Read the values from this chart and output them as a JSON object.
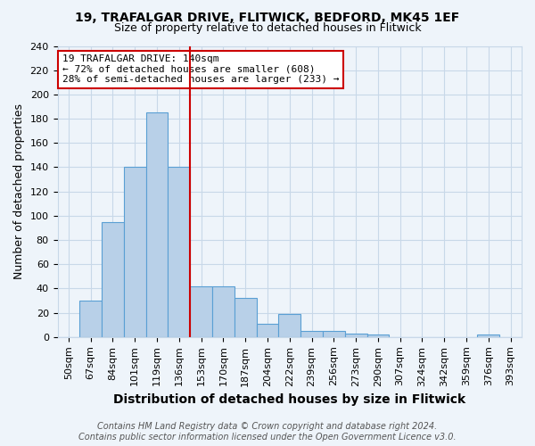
{
  "title_line1": "19, TRAFALGAR DRIVE, FLITWICK, BEDFORD, MK45 1EF",
  "title_line2": "Size of property relative to detached houses in Flitwick",
  "xlabel": "Distribution of detached houses by size in Flitwick",
  "ylabel": "Number of detached properties",
  "categories": [
    "50sqm",
    "67sqm",
    "84sqm",
    "101sqm",
    "119sqm",
    "136sqm",
    "153sqm",
    "170sqm",
    "187sqm",
    "204sqm",
    "222sqm",
    "239sqm",
    "256sqm",
    "273sqm",
    "290sqm",
    "307sqm",
    "324sqm",
    "342sqm",
    "359sqm",
    "376sqm",
    "393sqm"
  ],
  "values": [
    0,
    30,
    95,
    140,
    185,
    140,
    42,
    42,
    32,
    11,
    19,
    5,
    5,
    3,
    2,
    0,
    0,
    0,
    0,
    2,
    0
  ],
  "bar_color": "#b8d0e8",
  "bar_edge_color": "#5a9fd4",
  "red_line_index": 6,
  "annotation_line1": "19 TRAFALGAR DRIVE: 140sqm",
  "annotation_line2": "← 72% of detached houses are smaller (608)",
  "annotation_line3": "28% of semi-detached houses are larger (233) →",
  "annotation_box_color": "#ffffff",
  "annotation_box_edge": "#cc0000",
  "red_line_color": "#cc0000",
  "ylim": [
    0,
    240
  ],
  "yticks": [
    0,
    20,
    40,
    60,
    80,
    100,
    120,
    140,
    160,
    180,
    200,
    220,
    240
  ],
  "grid_color": "#c8d8e8",
  "background_color": "#eef4fa",
  "footer_line1": "Contains HM Land Registry data © Crown copyright and database right 2024.",
  "footer_line2": "Contains public sector information licensed under the Open Government Licence v3.0.",
  "title_fontsize": 10,
  "subtitle_fontsize": 9,
  "xlabel_fontsize": 10,
  "ylabel_fontsize": 9,
  "tick_fontsize": 8,
  "annotation_fontsize": 8,
  "footer_fontsize": 7
}
